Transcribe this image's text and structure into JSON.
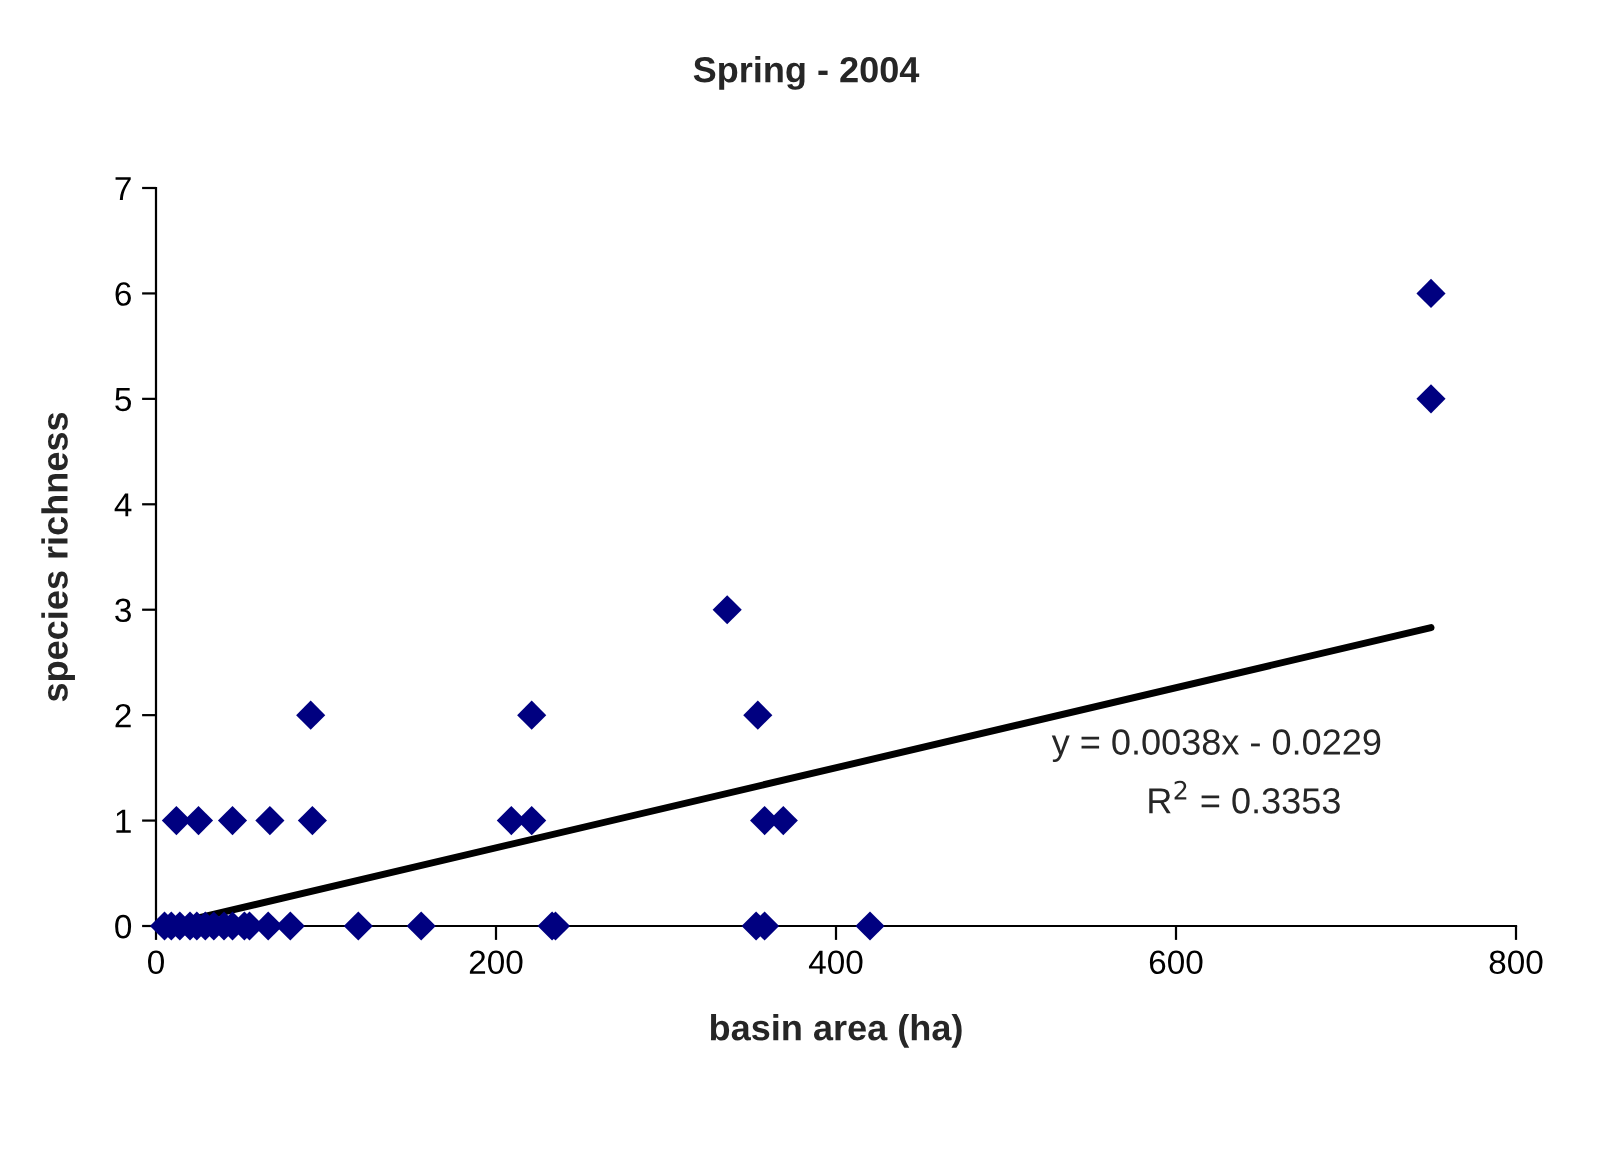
{
  "chart_data": {
    "type": "scatter",
    "title": "Spring - 2004",
    "xlabel": "basin area (ha)",
    "ylabel": "species richness",
    "series": [
      {
        "color": "#000080",
        "marker": "diamond",
        "x": [
          12,
          25,
          45,
          67,
          92,
          209,
          221,
          358,
          369,
          91,
          221,
          354,
          336,
          750,
          750,
          5,
          9,
          14,
          20,
          24,
          29,
          34,
          40,
          45,
          52,
          55,
          66,
          79,
          119,
          156,
          233,
          235,
          353,
          358,
          420
        ],
        "values": [
          1,
          1,
          1,
          1,
          1,
          1,
          1,
          1,
          1,
          2,
          2,
          2,
          3,
          6,
          5,
          0,
          0,
          0,
          0,
          0,
          0,
          0,
          0,
          0,
          0,
          0,
          0,
          0,
          0,
          0,
          0,
          0,
          0,
          0,
          0
        ]
      },
      {
        "type": "line",
        "color": "#000000",
        "marker": "none",
        "line_style": "solid",
        "x": [
          10,
          750
        ],
        "values": [
          0.02,
          2.83
        ]
      }
    ],
    "annotations": [
      "y = 0.0038x - 0.0229",
      "R$^{2}$ = 0.3353"
    ],
    "xlim": [
      0,
      800
    ],
    "xticks": [
      0,
      200,
      400,
      600,
      800
    ],
    "ylim": [
      0,
      7
    ],
    "yticks": [
      0,
      1,
      2,
      3,
      4,
      5,
      6,
      7
    ],
    "grid": false,
    "legend": false
  }
}
